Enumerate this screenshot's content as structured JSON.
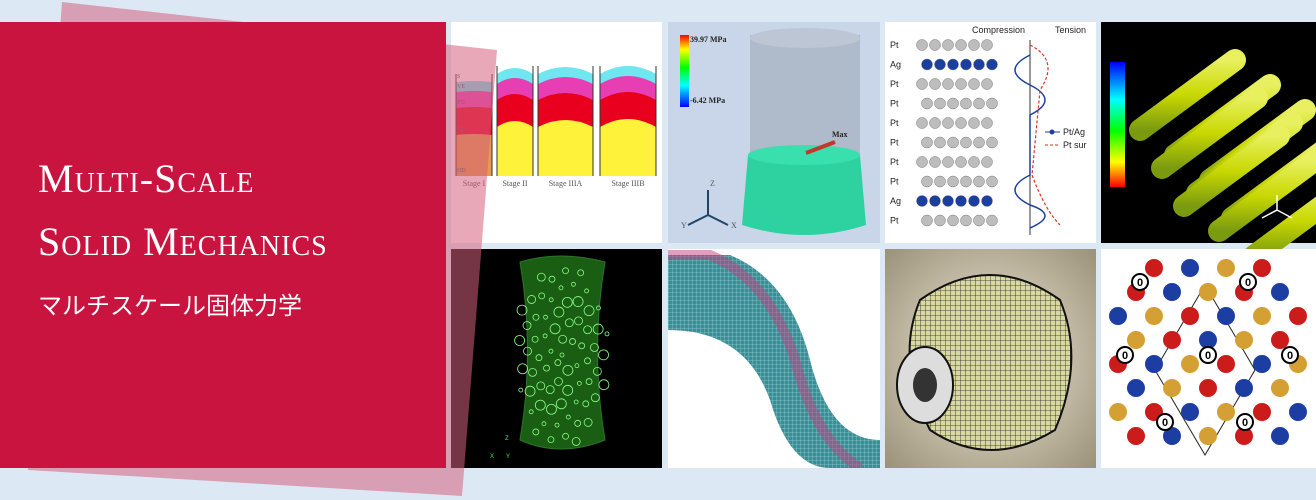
{
  "banner": {
    "title_lines": [
      "Multi-Scale",
      "Solid Mechanics"
    ],
    "subtitle": "マルチスケール固体力学"
  },
  "panels": [
    {
      "layer_labels": [
        "S",
        "VE",
        "PD",
        "RD",
        "HD"
      ],
      "stages": [
        "Stage I",
        "Stage II",
        "Stage IIIA",
        "Stage IIIB"
      ]
    },
    {
      "labels": [
        "39.97 MPa",
        "-6.42 MPa",
        "Max",
        "Z",
        "Y",
        "X"
      ]
    },
    {
      "labels": [
        "Compression",
        "Tension"
      ],
      "atoms": [
        "Pt",
        "Ag",
        "Pt",
        "Pt",
        "Pt",
        "Pt",
        "Pt",
        "Pt",
        "Ag",
        "Pt"
      ],
      "legend": [
        "Pt/Ag",
        "Pt sur"
      ]
    },
    {},
    {
      "labels": [
        "Z",
        "X",
        "Y"
      ]
    },
    {},
    {},
    {
      "labels": [
        "0",
        "0",
        "0",
        "0",
        "0",
        "0",
        "0"
      ]
    }
  ]
}
